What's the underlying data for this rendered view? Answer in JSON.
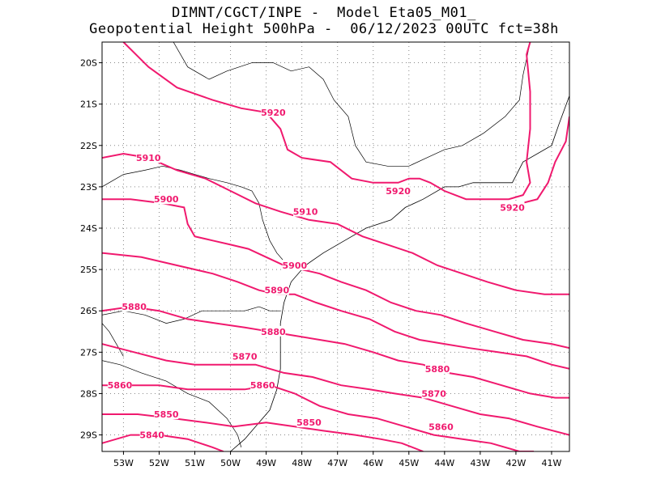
{
  "header": {
    "line1": "DIMNT/CGCT/INPE -  Model Eta05_M01_",
    "line2": "Geopotential Height 500hPa -  06/12/2023 00UTC fct=38h"
  },
  "colors": {
    "contour": "#f0196e",
    "grid": "#888888",
    "coast": "#000000"
  },
  "chart_data": {
    "type": "contour-map",
    "xlim": [
      -53.6,
      -40.5
    ],
    "ylim": [
      -29.4,
      -19.5
    ],
    "grid": true,
    "x_ticks": [
      {
        "value": -53,
        "label": "53W"
      },
      {
        "value": -52,
        "label": "52W"
      },
      {
        "value": -51,
        "label": "51W"
      },
      {
        "value": -50,
        "label": "50W"
      },
      {
        "value": -49,
        "label": "49W"
      },
      {
        "value": -48,
        "label": "48W"
      },
      {
        "value": -47,
        "label": "47W"
      },
      {
        "value": -46,
        "label": "46W"
      },
      {
        "value": -45,
        "label": "45W"
      },
      {
        "value": -44,
        "label": "44W"
      },
      {
        "value": -43,
        "label": "43W"
      },
      {
        "value": -42,
        "label": "42W"
      },
      {
        "value": -41,
        "label": "41W"
      }
    ],
    "y_ticks": [
      {
        "value": -20,
        "label": "20S"
      },
      {
        "value": -21,
        "label": "21S"
      },
      {
        "value": -22,
        "label": "22S"
      },
      {
        "value": -23,
        "label": "23S"
      },
      {
        "value": -24,
        "label": "24S"
      },
      {
        "value": -25,
        "label": "25S"
      },
      {
        "value": -26,
        "label": "26S"
      },
      {
        "value": -27,
        "label": "27S"
      },
      {
        "value": -28,
        "label": "28S"
      },
      {
        "value": -29,
        "label": "29S"
      }
    ],
    "contours": [
      {
        "label": "5920",
        "points": [
          [
            -53.0,
            -19.5
          ],
          [
            -52.3,
            -20.1
          ],
          [
            -51.5,
            -20.6
          ],
          [
            -50.5,
            -20.9
          ],
          [
            -49.7,
            -21.1
          ],
          [
            -49.0,
            -21.2
          ],
          [
            -48.6,
            -21.6
          ],
          [
            -48.4,
            -22.1
          ],
          [
            -48.0,
            -22.3
          ],
          [
            -47.2,
            -22.4
          ],
          [
            -46.6,
            -22.8
          ],
          [
            -46.0,
            -22.9
          ],
          [
            -45.3,
            -22.9
          ],
          [
            -45.0,
            -22.8
          ],
          [
            -44.7,
            -22.8
          ],
          [
            -44.4,
            -22.9
          ],
          [
            -44.0,
            -23.1
          ],
          [
            -43.4,
            -23.3
          ],
          [
            -42.8,
            -23.3
          ],
          [
            -42.2,
            -23.3
          ],
          [
            -41.8,
            -23.2
          ],
          [
            -41.6,
            -22.9
          ],
          [
            -41.7,
            -22.4
          ],
          [
            -41.6,
            -21.6
          ],
          [
            -41.6,
            -20.7
          ],
          [
            -41.7,
            -19.8
          ],
          [
            -41.6,
            -19.5
          ]
        ],
        "labels": [
          [
            -48.8,
            -21.2
          ],
          [
            -45.3,
            -23.1
          ]
        ]
      },
      {
        "label": "5920",
        "points": [
          [
            -42.3,
            -23.5
          ],
          [
            -41.4,
            -23.3
          ],
          [
            -41.1,
            -22.9
          ],
          [
            -40.9,
            -22.4
          ],
          [
            -40.6,
            -21.9
          ],
          [
            -40.5,
            -21.3
          ]
        ],
        "labels": [
          [
            -42.1,
            -23.5
          ]
        ]
      },
      {
        "label": "5910",
        "points": [
          [
            -53.6,
            -22.3
          ],
          [
            -53.0,
            -22.2
          ],
          [
            -52.3,
            -22.3
          ],
          [
            -51.5,
            -22.6
          ],
          [
            -50.7,
            -22.8
          ],
          [
            -50.0,
            -23.1
          ],
          [
            -49.3,
            -23.4
          ],
          [
            -48.6,
            -23.6
          ],
          [
            -47.8,
            -23.8
          ],
          [
            -47.0,
            -23.9
          ],
          [
            -46.3,
            -24.2
          ],
          [
            -45.6,
            -24.4
          ],
          [
            -44.9,
            -24.6
          ],
          [
            -44.2,
            -24.9
          ],
          [
            -43.5,
            -25.1
          ],
          [
            -42.8,
            -25.3
          ],
          [
            -42.0,
            -25.5
          ],
          [
            -41.2,
            -25.6
          ],
          [
            -40.5,
            -25.6
          ]
        ],
        "labels": [
          [
            -52.3,
            -22.3
          ],
          [
            -47.9,
            -23.6
          ]
        ]
      },
      {
        "label": "5900",
        "points": [
          [
            -53.6,
            -23.3
          ],
          [
            -52.8,
            -23.3
          ],
          [
            -51.9,
            -23.4
          ],
          [
            -51.3,
            -23.5
          ],
          [
            -51.2,
            -23.9
          ],
          [
            -51.0,
            -24.2
          ],
          [
            -50.5,
            -24.3
          ],
          [
            -50.0,
            -24.4
          ],
          [
            -49.5,
            -24.5
          ],
          [
            -49.0,
            -24.7
          ],
          [
            -48.5,
            -24.9
          ],
          [
            -48.0,
            -25.0
          ],
          [
            -47.5,
            -25.1
          ],
          [
            -46.9,
            -25.3
          ],
          [
            -46.2,
            -25.5
          ],
          [
            -45.5,
            -25.8
          ],
          [
            -44.8,
            -26.0
          ],
          [
            -44.1,
            -26.1
          ],
          [
            -43.4,
            -26.3
          ],
          [
            -42.6,
            -26.5
          ],
          [
            -41.8,
            -26.7
          ],
          [
            -41.0,
            -26.8
          ],
          [
            -40.5,
            -26.9
          ]
        ],
        "labels": [
          [
            -51.8,
            -23.3
          ],
          [
            -48.2,
            -24.9
          ]
        ]
      },
      {
        "label": "5890",
        "points": [
          [
            -53.6,
            -24.6
          ],
          [
            -52.5,
            -24.7
          ],
          [
            -51.5,
            -24.9
          ],
          [
            -50.5,
            -25.1
          ],
          [
            -49.8,
            -25.3
          ],
          [
            -49.2,
            -25.5
          ],
          [
            -48.7,
            -25.6
          ],
          [
            -48.2,
            -25.6
          ],
          [
            -47.6,
            -25.8
          ],
          [
            -46.9,
            -26.0
          ],
          [
            -46.1,
            -26.2
          ],
          [
            -45.4,
            -26.5
          ],
          [
            -44.7,
            -26.7
          ],
          [
            -44.0,
            -26.8
          ],
          [
            -43.3,
            -26.9
          ],
          [
            -42.5,
            -27.0
          ],
          [
            -41.7,
            -27.1
          ],
          [
            -41.0,
            -27.3
          ],
          [
            -40.5,
            -27.4
          ]
        ],
        "labels": [
          [
            -48.7,
            -25.5
          ]
        ]
      },
      {
        "label": "5880",
        "points": [
          [
            -53.6,
            -26.0
          ],
          [
            -52.8,
            -25.9
          ],
          [
            -52.0,
            -26.0
          ],
          [
            -51.2,
            -26.2
          ],
          [
            -50.4,
            -26.3
          ],
          [
            -49.6,
            -26.4
          ],
          [
            -48.9,
            -26.5
          ],
          [
            -48.2,
            -26.6
          ],
          [
            -47.5,
            -26.7
          ],
          [
            -46.8,
            -26.8
          ],
          [
            -46.0,
            -27.0
          ],
          [
            -45.3,
            -27.2
          ],
          [
            -44.6,
            -27.3
          ],
          [
            -43.9,
            -27.5
          ],
          [
            -43.2,
            -27.6
          ],
          [
            -42.4,
            -27.8
          ],
          [
            -41.6,
            -28.0
          ],
          [
            -40.9,
            -28.1
          ],
          [
            -40.5,
            -28.1
          ]
        ],
        "labels": [
          [
            -52.7,
            -25.9
          ],
          [
            -48.8,
            -26.5
          ],
          [
            -44.2,
            -27.4
          ]
        ]
      },
      {
        "label": "5870",
        "points": [
          [
            -53.6,
            -26.8
          ],
          [
            -52.7,
            -27.0
          ],
          [
            -51.8,
            -27.2
          ],
          [
            -51.0,
            -27.3
          ],
          [
            -50.2,
            -27.3
          ],
          [
            -49.3,
            -27.3
          ],
          [
            -48.5,
            -27.5
          ],
          [
            -47.7,
            -27.6
          ],
          [
            -46.9,
            -27.8
          ],
          [
            -46.1,
            -27.9
          ],
          [
            -45.4,
            -28.0
          ],
          [
            -44.6,
            -28.1
          ],
          [
            -43.8,
            -28.3
          ],
          [
            -43.0,
            -28.5
          ],
          [
            -42.2,
            -28.6
          ],
          [
            -41.4,
            -28.8
          ],
          [
            -40.5,
            -29.0
          ]
        ],
        "labels": [
          [
            -49.6,
            -27.1
          ],
          [
            -44.3,
            -28.0
          ]
        ]
      },
      {
        "label": "5860",
        "points": [
          [
            -53.6,
            -27.8
          ],
          [
            -52.8,
            -27.8
          ],
          [
            -52.0,
            -27.8
          ],
          [
            -51.2,
            -27.9
          ],
          [
            -50.4,
            -27.9
          ],
          [
            -49.6,
            -27.9
          ],
          [
            -48.9,
            -27.8
          ],
          [
            -48.2,
            -28.0
          ],
          [
            -47.5,
            -28.3
          ],
          [
            -46.7,
            -28.5
          ],
          [
            -45.9,
            -28.6
          ],
          [
            -45.1,
            -28.8
          ],
          [
            -44.3,
            -29.0
          ],
          [
            -43.5,
            -29.1
          ],
          [
            -42.7,
            -29.2
          ],
          [
            -41.9,
            -29.4
          ],
          [
            -41.5,
            -29.4
          ]
        ],
        "labels": [
          [
            -53.1,
            -27.8
          ],
          [
            -49.1,
            -27.8
          ],
          [
            -44.1,
            -28.8
          ]
        ]
      },
      {
        "label": "5850",
        "points": [
          [
            -53.6,
            -28.5
          ],
          [
            -52.6,
            -28.5
          ],
          [
            -51.6,
            -28.6
          ],
          [
            -50.7,
            -28.7
          ],
          [
            -49.9,
            -28.8
          ],
          [
            -49.0,
            -28.7
          ],
          [
            -48.2,
            -28.8
          ],
          [
            -47.4,
            -28.9
          ],
          [
            -46.5,
            -29.0
          ],
          [
            -45.8,
            -29.1
          ],
          [
            -45.2,
            -29.2
          ],
          [
            -44.6,
            -29.4
          ]
        ],
        "labels": [
          [
            -51.8,
            -28.5
          ],
          [
            -47.8,
            -28.7
          ]
        ]
      },
      {
        "label": "5840",
        "points": [
          [
            -53.6,
            -29.2
          ],
          [
            -52.8,
            -29.0
          ],
          [
            -52.0,
            -29.0
          ],
          [
            -51.2,
            -29.1
          ],
          [
            -50.5,
            -29.3
          ],
          [
            -50.2,
            -29.4
          ]
        ],
        "labels": [
          [
            -52.2,
            -29.0
          ]
        ]
      }
    ]
  },
  "map": {
    "borders": [
      [
        [
          -51.6,
          -19.5
        ],
        [
          -51.2,
          -20.1
        ],
        [
          -50.6,
          -20.4
        ],
        [
          -50.1,
          -20.2
        ],
        [
          -49.4,
          -20.0
        ],
        [
          -48.8,
          -20.0
        ],
        [
          -48.3,
          -20.2
        ],
        [
          -47.8,
          -20.1
        ],
        [
          -47.4,
          -20.4
        ],
        [
          -47.1,
          -20.9
        ],
        [
          -46.7,
          -21.3
        ],
        [
          -46.5,
          -22.0
        ],
        [
          -46.2,
          -22.4
        ],
        [
          -45.6,
          -22.5
        ],
        [
          -45.0,
          -22.5
        ],
        [
          -44.5,
          -22.3
        ],
        [
          -44.0,
          -22.1
        ],
        [
          -43.5,
          -22.0
        ],
        [
          -42.9,
          -21.7
        ],
        [
          -42.3,
          -21.3
        ],
        [
          -41.9,
          -20.9
        ],
        [
          -41.8,
          -20.3
        ],
        [
          -41.6,
          -19.5
        ]
      ],
      [
        [
          -53.6,
          -23.0
        ],
        [
          -53.0,
          -22.7
        ],
        [
          -52.4,
          -22.6
        ],
        [
          -51.9,
          -22.5
        ],
        [
          -51.4,
          -22.6
        ],
        [
          -51.0,
          -22.7
        ],
        [
          -50.6,
          -22.8
        ],
        [
          -50.1,
          -22.9
        ],
        [
          -49.7,
          -23.0
        ],
        [
          -49.4,
          -23.1
        ],
        [
          -49.2,
          -23.4
        ],
        [
          -49.1,
          -23.8
        ],
        [
          -48.9,
          -24.3
        ],
        [
          -48.7,
          -24.6
        ],
        [
          -48.4,
          -24.9
        ]
      ],
      [
        [
          -53.6,
          -26.1
        ],
        [
          -53.0,
          -26.0
        ],
        [
          -52.4,
          -26.1
        ],
        [
          -51.8,
          -26.3
        ],
        [
          -51.3,
          -26.2
        ],
        [
          -50.8,
          -26.0
        ],
        [
          -50.2,
          -26.0
        ],
        [
          -49.6,
          -26.0
        ],
        [
          -49.2,
          -25.9
        ],
        [
          -48.9,
          -26.0
        ],
        [
          -48.6,
          -26.0
        ]
      ],
      [
        [
          -53.6,
          -27.2
        ],
        [
          -53.1,
          -27.3
        ],
        [
          -52.5,
          -27.5
        ],
        [
          -51.8,
          -27.7
        ],
        [
          -51.2,
          -28.0
        ],
        [
          -50.6,
          -28.2
        ],
        [
          -50.1,
          -28.6
        ],
        [
          -49.8,
          -29.0
        ],
        [
          -49.7,
          -29.3
        ]
      ],
      [
        [
          -53.6,
          -26.3
        ],
        [
          -53.4,
          -26.5
        ],
        [
          -53.2,
          -26.8
        ],
        [
          -53.0,
          -27.1
        ]
      ]
    ],
    "coastline": [
      [
        -40.5,
        -20.8
      ],
      [
        -40.8,
        -21.5
      ],
      [
        -41.0,
        -22.0
      ],
      [
        -41.8,
        -22.4
      ],
      [
        -42.1,
        -22.9
      ],
      [
        -42.6,
        -22.9
      ],
      [
        -43.2,
        -22.9
      ],
      [
        -43.6,
        -23.0
      ],
      [
        -44.0,
        -23.0
      ],
      [
        -44.6,
        -23.3
      ],
      [
        -45.1,
        -23.5
      ],
      [
        -45.5,
        -23.8
      ],
      [
        -46.2,
        -24.0
      ],
      [
        -46.8,
        -24.3
      ],
      [
        -47.4,
        -24.6
      ],
      [
        -47.9,
        -24.9
      ],
      [
        -48.3,
        -25.3
      ],
      [
        -48.5,
        -25.8
      ],
      [
        -48.6,
        -26.3
      ],
      [
        -48.6,
        -26.8
      ],
      [
        -48.6,
        -27.4
      ],
      [
        -48.7,
        -27.9
      ],
      [
        -48.9,
        -28.4
      ],
      [
        -49.2,
        -28.7
      ],
      [
        -49.6,
        -29.1
      ],
      [
        -50.0,
        -29.4
      ]
    ]
  }
}
